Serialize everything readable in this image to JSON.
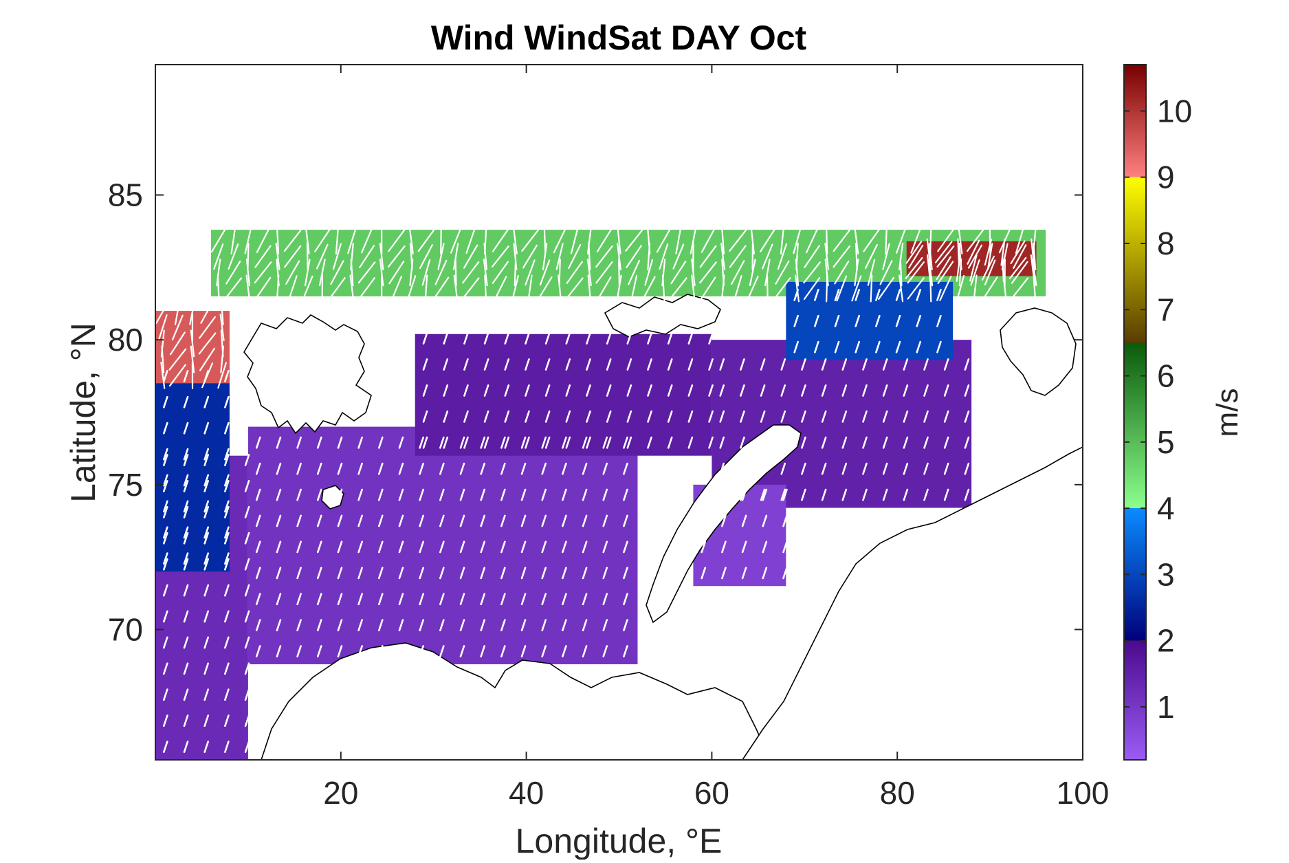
{
  "chart_data": {
    "type": "heatmap",
    "title": "Wind WindSat DAY Oct",
    "xlabel": "Longitude, °E",
    "ylabel": "Latitude, °N",
    "xlim": [
      0,
      100
    ],
    "ylim": [
      65.5,
      89.5
    ],
    "xticks": [
      "20",
      "40",
      "60",
      "80",
      "100"
    ],
    "xtick_values": [
      20,
      40,
      60,
      80,
      100
    ],
    "yticks": [
      "70",
      "75",
      "80",
      "85"
    ],
    "ytick_values": [
      70,
      75,
      80,
      85
    ],
    "grid": false,
    "vectors": "white wind-direction arrows overlaid on the speed field",
    "colorbar": {
      "label": "m/s",
      "range": [
        0.2,
        10.7
      ],
      "ticks": [
        "1",
        "2",
        "3",
        "4",
        "5",
        "6",
        "7",
        "8",
        "9",
        "10"
      ],
      "tick_values": [
        1,
        2,
        3,
        4,
        5,
        6,
        7,
        8,
        9,
        10
      ],
      "bands": [
        {
          "from": 0.2,
          "to": 2.0,
          "colors": [
            "#9b5cf6",
            "#4b0a8c"
          ]
        },
        {
          "from": 2.0,
          "to": 4.0,
          "colors": [
            "#00007a",
            "#0a8cff"
          ]
        },
        {
          "from": 4.0,
          "to": 6.5,
          "colors": [
            "#8cff8c",
            "#0a5a0a"
          ]
        },
        {
          "from": 6.5,
          "to": 9.0,
          "colors": [
            "#5a3c00",
            "#ffff00"
          ]
        },
        {
          "from": 9.0,
          "to": 10.7,
          "colors": [
            "#ff8080",
            "#780000"
          ]
        }
      ]
    },
    "regions": [
      {
        "lon": [
          0,
          10
        ],
        "lat": [
          65.5,
          76
        ],
        "speed": 1.3
      },
      {
        "lon": [
          0,
          8
        ],
        "lat": [
          72,
          79
        ],
        "speed": 2.6
      },
      {
        "lon": [
          10,
          52
        ],
        "lat": [
          68.8,
          77
        ],
        "speed": 1.1
      },
      {
        "lon": [
          28,
          60
        ],
        "lat": [
          76,
          80.2
        ],
        "speed": 1.6
      },
      {
        "lon": [
          60,
          88
        ],
        "lat": [
          74.2,
          80
        ],
        "speed": 1.5
      },
      {
        "lon": [
          58,
          68
        ],
        "lat": [
          71.5,
          75
        ],
        "speed": 0.8
      },
      {
        "lon": [
          6,
          96
        ],
        "lat": [
          81.5,
          83.8
        ],
        "speed": 4.8
      },
      {
        "lon": [
          68,
          86
        ],
        "lat": [
          79.3,
          82
        ],
        "speed": 3.0
      },
      {
        "lon": [
          81,
          95
        ],
        "lat": [
          82.2,
          83.4
        ],
        "speed": 10.2
      },
      {
        "lon": [
          0,
          8
        ],
        "lat": [
          78.5,
          81
        ],
        "speed": 9.5
      }
    ]
  }
}
